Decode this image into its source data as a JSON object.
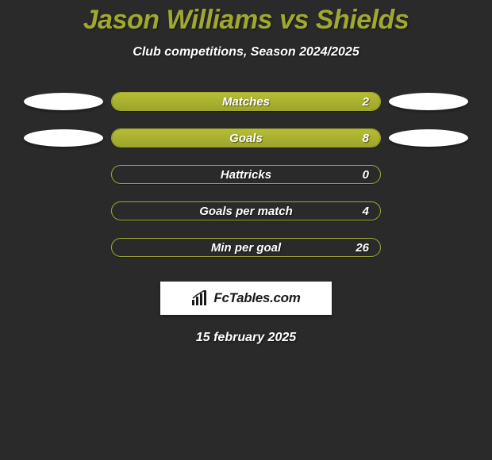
{
  "title": "Jason Williams vs Shields",
  "subtitle": "Club competitions, Season 2024/2025",
  "date": "15 february 2025",
  "colors": {
    "accent": "#a0a830",
    "accent_fill_top": "#b6bd33",
    "accent_fill_bot": "#9da52b",
    "background": "#2a2a2a",
    "text": "#ffffff"
  },
  "brand": {
    "label": "FcTables.com",
    "icon_color": "#1a1a1a"
  },
  "stats": [
    {
      "label": "Matches",
      "value_right": "2",
      "fill_pct": 100,
      "left_ellipse": true,
      "right_ellipse": true
    },
    {
      "label": "Goals",
      "value_right": "8",
      "fill_pct": 100,
      "left_ellipse": true,
      "right_ellipse": true
    },
    {
      "label": "Hattricks",
      "value_right": "0",
      "fill_pct": 0,
      "left_ellipse": false,
      "right_ellipse": false
    },
    {
      "label": "Goals per match",
      "value_right": "4",
      "fill_pct": 0,
      "left_ellipse": false,
      "right_ellipse": false
    },
    {
      "label": "Min per goal",
      "value_right": "26",
      "fill_pct": 0,
      "left_ellipse": false,
      "right_ellipse": false
    }
  ]
}
